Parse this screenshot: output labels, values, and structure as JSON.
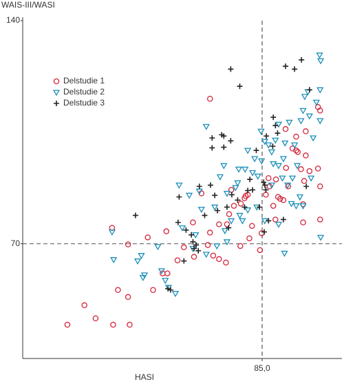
{
  "chart_data": {
    "type": "scatter",
    "ylabel": "WAIS-III/WASI",
    "xlabel": "HASI",
    "xlim": [
      40,
      100
    ],
    "ylim": [
      34,
      140
    ],
    "xticks": [
      {
        "value": 85,
        "label": "85,0"
      }
    ],
    "yticks": [
      70,
      140
    ],
    "grid": true,
    "grid_style": "dashed",
    "legend": "upper left",
    "series": [
      {
        "name": "Delstudie 1",
        "color": "#d4243a",
        "marker": "circle",
        "x": [
          48.4,
          51.6,
          53.7,
          57.0,
          60.1,
          57.9,
          59.8,
          56.8,
          59.8,
          63.5,
          67.0,
          64.5,
          66.3,
          67.2,
          69.1,
          70.3,
          72.0,
          73.6,
          75.2,
          72.2,
          75.2,
          74.8,
          75.8,
          76.9,
          78.2,
          76.9,
          78.4,
          78.8,
          79.2,
          79.7,
          80.9,
          81.0,
          81.7,
          81.9,
          82.3,
          82.6,
          83.1,
          84.6,
          84.9,
          85.7,
          86.2,
          86.4,
          87.1,
          87.5,
          87.6,
          88.0,
          88.4,
          89.0,
          89.4,
          89.5,
          89.9,
          90.7,
          91.4,
          91.7,
          92.3,
          92.7,
          93.2,
          93.9,
          95.5,
          95.9,
          95.5,
          95.9,
          95.9,
          92.7,
          92.9,
          91.4,
          93.2
        ],
        "values": [
          44.6,
          50.7,
          46.6,
          44.6,
          44.6,
          55.5,
          53.3,
          75.0,
          69.8,
          72.0,
          73.9,
          55.5,
          60.7,
          60.7,
          64.8,
          68.9,
          76.7,
          85.8,
          115.5,
          65.9,
          73.5,
          69.6,
          66.3,
          65.2,
          64.1,
          76.1,
          76.1,
          79.3,
          86.9,
          81.9,
          69.3,
          82.6,
          84.3,
          85.0,
          85.4,
          71.7,
          75.6,
          68.0,
          73.3,
          85.4,
          90.6,
          88.0,
          81.9,
          77.6,
          90.2,
          84.7,
          84.1,
          83.7,
          106.0,
          93.8,
          88.0,
          99.9,
          99.3,
          98.8,
          93.4,
          82.4,
          97.7,
          92.8,
          112.9,
          111.8,
          93.6,
          88.0,
          77.6,
          76.7,
          89.7,
          103.6,
          105.3
        ]
      },
      {
        "name": "Delstudie 2",
        "color": "#1a8fb8",
        "marker": "triangle-down",
        "x": [
          56.8,
          57.1,
          62.3,
          62.6,
          66.1,
          67.4,
          68.7,
          69.4,
          71.3,
          73.2,
          73.6,
          74.5,
          76.1,
          77.1,
          77.8,
          78.0,
          79.2,
          80.8,
          81.3,
          78.4,
          80.4,
          80.6,
          81.8,
          82.3,
          83.2,
          83.6,
          84.0,
          84.2,
          84.8,
          85.5,
          86.2,
          86.8,
          87.1,
          87.5,
          88.1,
          88.1,
          89.0,
          89.3,
          89.8,
          90.1,
          90.7,
          91.4,
          91.6,
          92.3,
          92.7,
          93.0,
          93.6,
          93.9,
          94.6,
          95.2,
          95.8,
          96.0,
          95.9,
          95.9,
          96.0,
          89.2,
          88.1,
          85.5,
          92.7,
          90.5,
          82.3,
          84.9,
          80.0,
          91.1,
          94.2,
          65.4,
          62.9,
          72.0,
          70.0,
          78.4,
          76.5,
          72.5,
          74.5,
          66.8,
          61.6,
          86.8,
          88.8,
          92.1
        ],
        "values": [
          73.7,
          65.0,
          66.3,
          59.4,
          61.5,
          56.3,
          54.4,
          88.4,
          85.2,
          86.5,
          80.8,
          106.8,
          81.5,
          91.0,
          94.5,
          74.1,
          77.2,
          78.9,
          77.2,
          85.8,
          89.1,
          93.4,
          93.4,
          80.6,
          92.3,
          96.7,
          81.5,
          91.2,
          105.3,
          102.1,
          101.0,
          98.8,
          95.1,
          102.5,
          107.5,
          94.5,
          96.7,
          101.6,
          88.4,
          108.1,
          90.6,
          81.9,
          94.5,
          108.6,
          111.8,
          116.2,
          117.7,
          110.1,
          103.2,
          114.4,
          129.2,
          127.4,
          118.3,
          108.6,
          72.0,
          67.0,
          76.1,
          77.2,
          81.9,
          82.6,
          99.3,
          96.0,
          87.6,
          101.0,
          90.6,
          69.1,
          60.2,
          68.5,
          75.0,
          70.6,
          69.3,
          72.8,
          66.7,
          58.5,
          64.6,
          88.4,
          90.6,
          84.7
        ]
      },
      {
        "name": "Delstudie 3",
        "color": "#222222",
        "marker": "plus",
        "x": [
          61.2,
          67.3,
          67.8,
          69.2,
          70.3,
          70.7,
          71.7,
          72.0,
          72.2,
          72.6,
          73.0,
          74.2,
          75.3,
          75.6,
          75.6,
          76.1,
          76.6,
          77.4,
          77.8,
          77.8,
          78.4,
          78.7,
          79.1,
          79.1,
          80.4,
          80.8,
          82.3,
          83.2,
          83.9,
          84.5,
          85.3,
          85.5,
          85.7,
          85.8,
          86.2,
          85.4,
          87.0,
          87.1,
          87.5,
          87.9,
          89.0,
          89.4,
          91.1,
          92.4,
          93.9,
          93.3,
          82.7,
          79.3,
          81.7,
          69.4,
          73.2
        ],
        "values": [
          78.9,
          55.9,
          55.5,
          76.7,
          64.6,
          74.3,
          72.8,
          70.6,
          68.5,
          69.6,
          67.8,
          78.9,
          88.4,
          100.1,
          103.2,
          85.2,
          80.4,
          104.2,
          103.8,
          100.3,
          81.5,
          75.0,
          102.3,
          124.8,
          83.7,
          119.4,
          86.7,
          86.9,
          99.3,
          81.5,
          89.3,
          88.4,
          86.9,
          103.8,
          77.2,
          73.7,
          100.6,
          109.7,
          107.1,
          104.7,
          77.6,
          125.7,
          124.8,
          127.7,
          118.3,
          88.0,
          90.2,
          85.4,
          81.5,
          84.7,
          88.0
        ]
      }
    ]
  }
}
